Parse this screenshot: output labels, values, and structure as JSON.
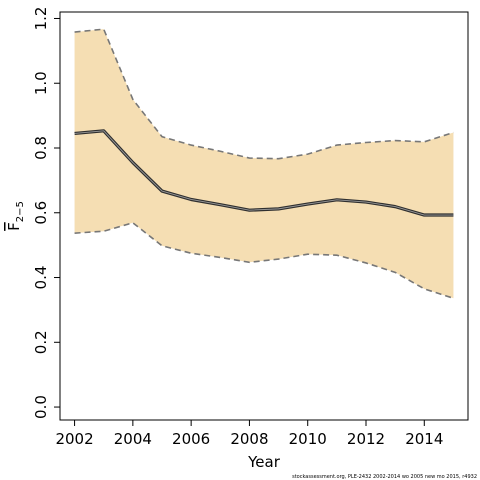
{
  "chart_data": {
    "type": "line",
    "title": "",
    "xlabel": "Year",
    "ylabel": {
      "base": "F",
      "subscript": "2−5"
    },
    "xlim": [
      2001.5,
      2015.5
    ],
    "ylim": [
      -0.04,
      1.22
    ],
    "x_ticks": [
      2002,
      2004,
      2006,
      2008,
      2010,
      2012,
      2014
    ],
    "x_tick_labels": [
      "2002",
      "2004",
      "2006",
      "2008",
      "2010",
      "2012",
      "2014"
    ],
    "y_ticks": [
      0.0,
      0.2,
      0.4,
      0.6,
      0.8,
      1.0,
      1.2
    ],
    "y_tick_labels": [
      "0.0",
      "0.2",
      "0.4",
      "0.6",
      "0.8",
      "1.0",
      "1.2"
    ],
    "grid": false,
    "x": [
      2002,
      2003,
      2004,
      2005,
      2006,
      2007,
      2008,
      2009,
      2010,
      2011,
      2012,
      2013,
      2014,
      2015
    ],
    "series": [
      {
        "role": "estimate",
        "values": [
          0.845,
          0.853,
          0.755,
          0.667,
          0.641,
          0.625,
          0.608,
          0.612,
          0.627,
          0.64,
          0.633,
          0.619,
          0.593,
          0.593
        ]
      },
      {
        "role": "upper",
        "values": [
          1.158,
          1.167,
          0.95,
          0.835,
          0.809,
          0.79,
          0.769,
          0.767,
          0.781,
          0.809,
          0.817,
          0.823,
          0.819,
          0.848
        ]
      },
      {
        "role": "lower",
        "values": [
          0.537,
          0.543,
          0.569,
          0.498,
          0.475,
          0.462,
          0.447,
          0.457,
          0.472,
          0.469,
          0.445,
          0.416,
          0.365,
          0.336
        ]
      }
    ],
    "colors": {
      "band": "#f5deb3",
      "estimate_line": "#2f2f2f",
      "bound_line": "#777777",
      "axis": "#000000"
    },
    "footer": "stockassessment.org, PLE-2432 2002-2014 wo 2005 new mo 2015, r4932"
  }
}
